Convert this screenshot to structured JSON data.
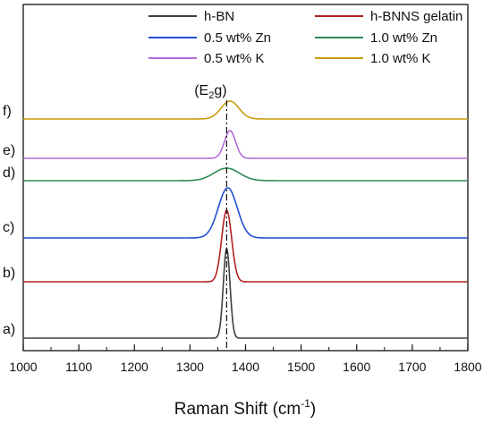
{
  "chart_data": {
    "type": "line",
    "title": "",
    "xlabel": {
      "base": "Raman Shift (cm",
      "sup": "-1",
      "close": ")"
    },
    "ylabel": "",
    "xlim": [
      1000,
      1800
    ],
    "xticks": [
      "1000",
      "1100",
      "1200",
      "1300",
      "1400",
      "1500",
      "1600",
      "1700",
      "1800"
    ],
    "annotation": {
      "text_base": "(E",
      "text_sub": "2",
      "text_end": "g)",
      "x": 1366
    },
    "grid": false,
    "legend_position": "top",
    "series": [
      {
        "name": "h-BN",
        "panel": "a)",
        "color": "#404040",
        "center": 1366,
        "sigma": 6,
        "amplitude": 100,
        "baseline": 0
      },
      {
        "name": "h-BNNS gelatin",
        "panel": "b)",
        "color": "#b22222",
        "center": 1366,
        "sigma": 9,
        "amplitude": 80,
        "baseline": 63
      },
      {
        "name": "0.5 wt% Zn",
        "panel": "c)",
        "color": "#1f4fd0",
        "center": 1368,
        "sigma": 17,
        "amplitude": 56,
        "baseline": 112
      },
      {
        "name": "1.0 wt%  Zn",
        "panel": "d)",
        "color": "#2e8b57",
        "center": 1366,
        "sigma": 23,
        "amplitude": 14,
        "baseline": 176
      },
      {
        "name": "0.5 wt% K",
        "panel": "e)",
        "color": "#b36ad6",
        "center": 1372,
        "sigma": 10,
        "amplitude": 31,
        "baseline": 201
      },
      {
        "name": "1.0 wt%  K",
        "panel": "f)",
        "color": "#c89b0c",
        "center": 1372,
        "sigma": 16,
        "amplitude": 20,
        "baseline": 245
      }
    ]
  }
}
